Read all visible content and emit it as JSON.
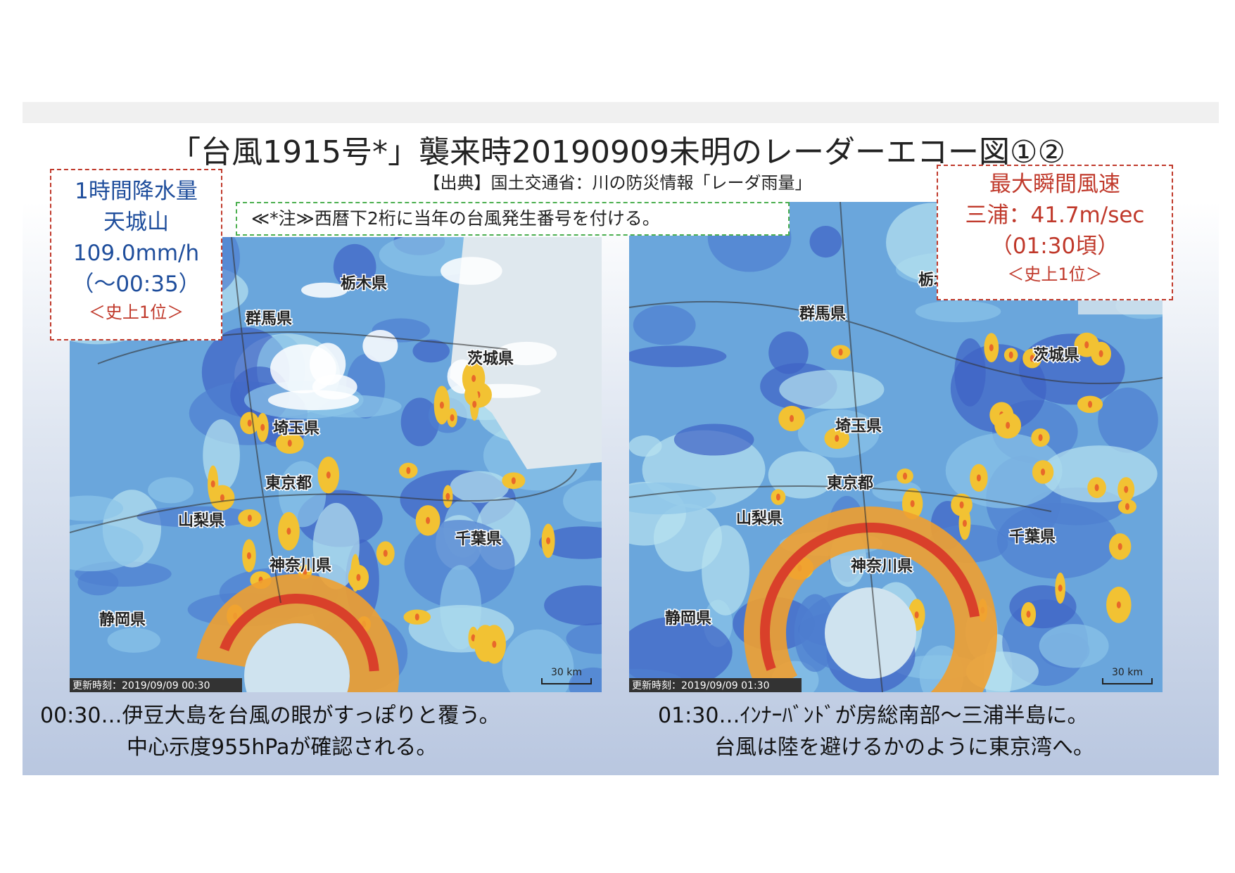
{
  "header": {
    "title": "「台風1915号*」襲来時20190909未明のレーダーエコー図①②",
    "source": "【出典】国土交通省：川の防災情報「レーダ雨量」"
  },
  "note": "≪*注≫西暦下2桁に当年の台風発生番号を付ける。",
  "left_box": {
    "lines": [
      "1時間降水量",
      "天城山",
      "109.0mm/h",
      "（～00:35）"
    ],
    "rank": "＜史上1位＞"
  },
  "right_box": {
    "lines": [
      "最大瞬間風速",
      "三浦：41.7m/sec",
      "（01:30頃）"
    ],
    "rank": "＜史上1位＞"
  },
  "maps": [
    {
      "timestamp": "更新時刻：2019/09/09 00:30",
      "scale": "30 km",
      "labels": [
        "栃木県",
        "群馬県",
        "茨城県",
        "埼玉県",
        "東京都",
        "山梨県",
        "千葉県",
        "神奈川県",
        "静岡県"
      ],
      "caption": [
        "00:30…伊豆大島を台風の眼がすっぽりと覆う。",
        "中心示度955hPaが確認される。"
      ]
    },
    {
      "timestamp": "更新時刻：2019/09/09 01:30",
      "scale": "30 km",
      "labels": [
        "栃木県",
        "群馬県",
        "茨城県",
        "埼玉県",
        "東京都",
        "山梨県",
        "千葉県",
        "神奈川県",
        "静岡県"
      ],
      "caption": [
        "01:30…ｲﾝﾅｰﾊﾞﾝﾄﾞが房総南部～三浦半島に。",
        "台風は陸を避けるかのように東京湾へ。"
      ]
    }
  ]
}
